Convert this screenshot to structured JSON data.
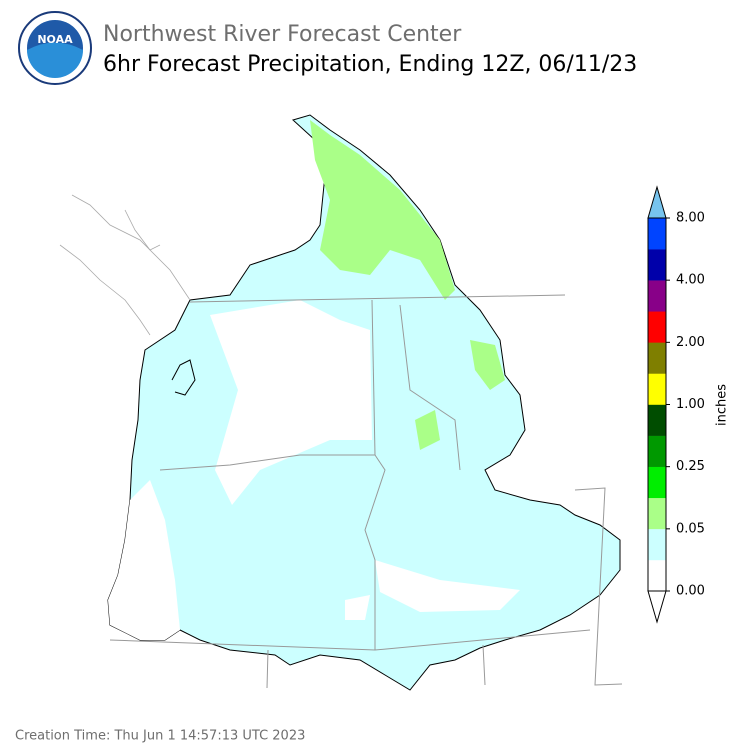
{
  "header": {
    "logo_text": "NOAA",
    "organization": "Northwest River Forecast Center",
    "title": "6hr Forecast Precipitation, Ending 12Z, 06/11/23"
  },
  "colorbar": {
    "label": "inches",
    "ticks": [
      {
        "value": 0,
        "label": "0.00"
      },
      {
        "value": 0.05,
        "label": "0.05"
      },
      {
        "value": 0.25,
        "label": "0.25"
      },
      {
        "value": 1,
        "label": "1.00"
      },
      {
        "value": 2,
        "label": "2.00"
      },
      {
        "value": 4,
        "label": "4.00"
      },
      {
        "value": 8,
        "label": "8.00"
      }
    ],
    "colors": [
      "#ffffff",
      "#ccffff",
      "#aaff88",
      "#00ee00",
      "#009900",
      "#004d00",
      "#ffff00",
      "#7f7f00",
      "#ff0000",
      "#880088",
      "#0000aa",
      "#0044ff"
    ],
    "over_color": "#77c4ee",
    "under_color": "#ffffff"
  },
  "footer": {
    "creation_time": "Creation Time: Thu Jun 1 14:57:13 UTC 2023"
  }
}
